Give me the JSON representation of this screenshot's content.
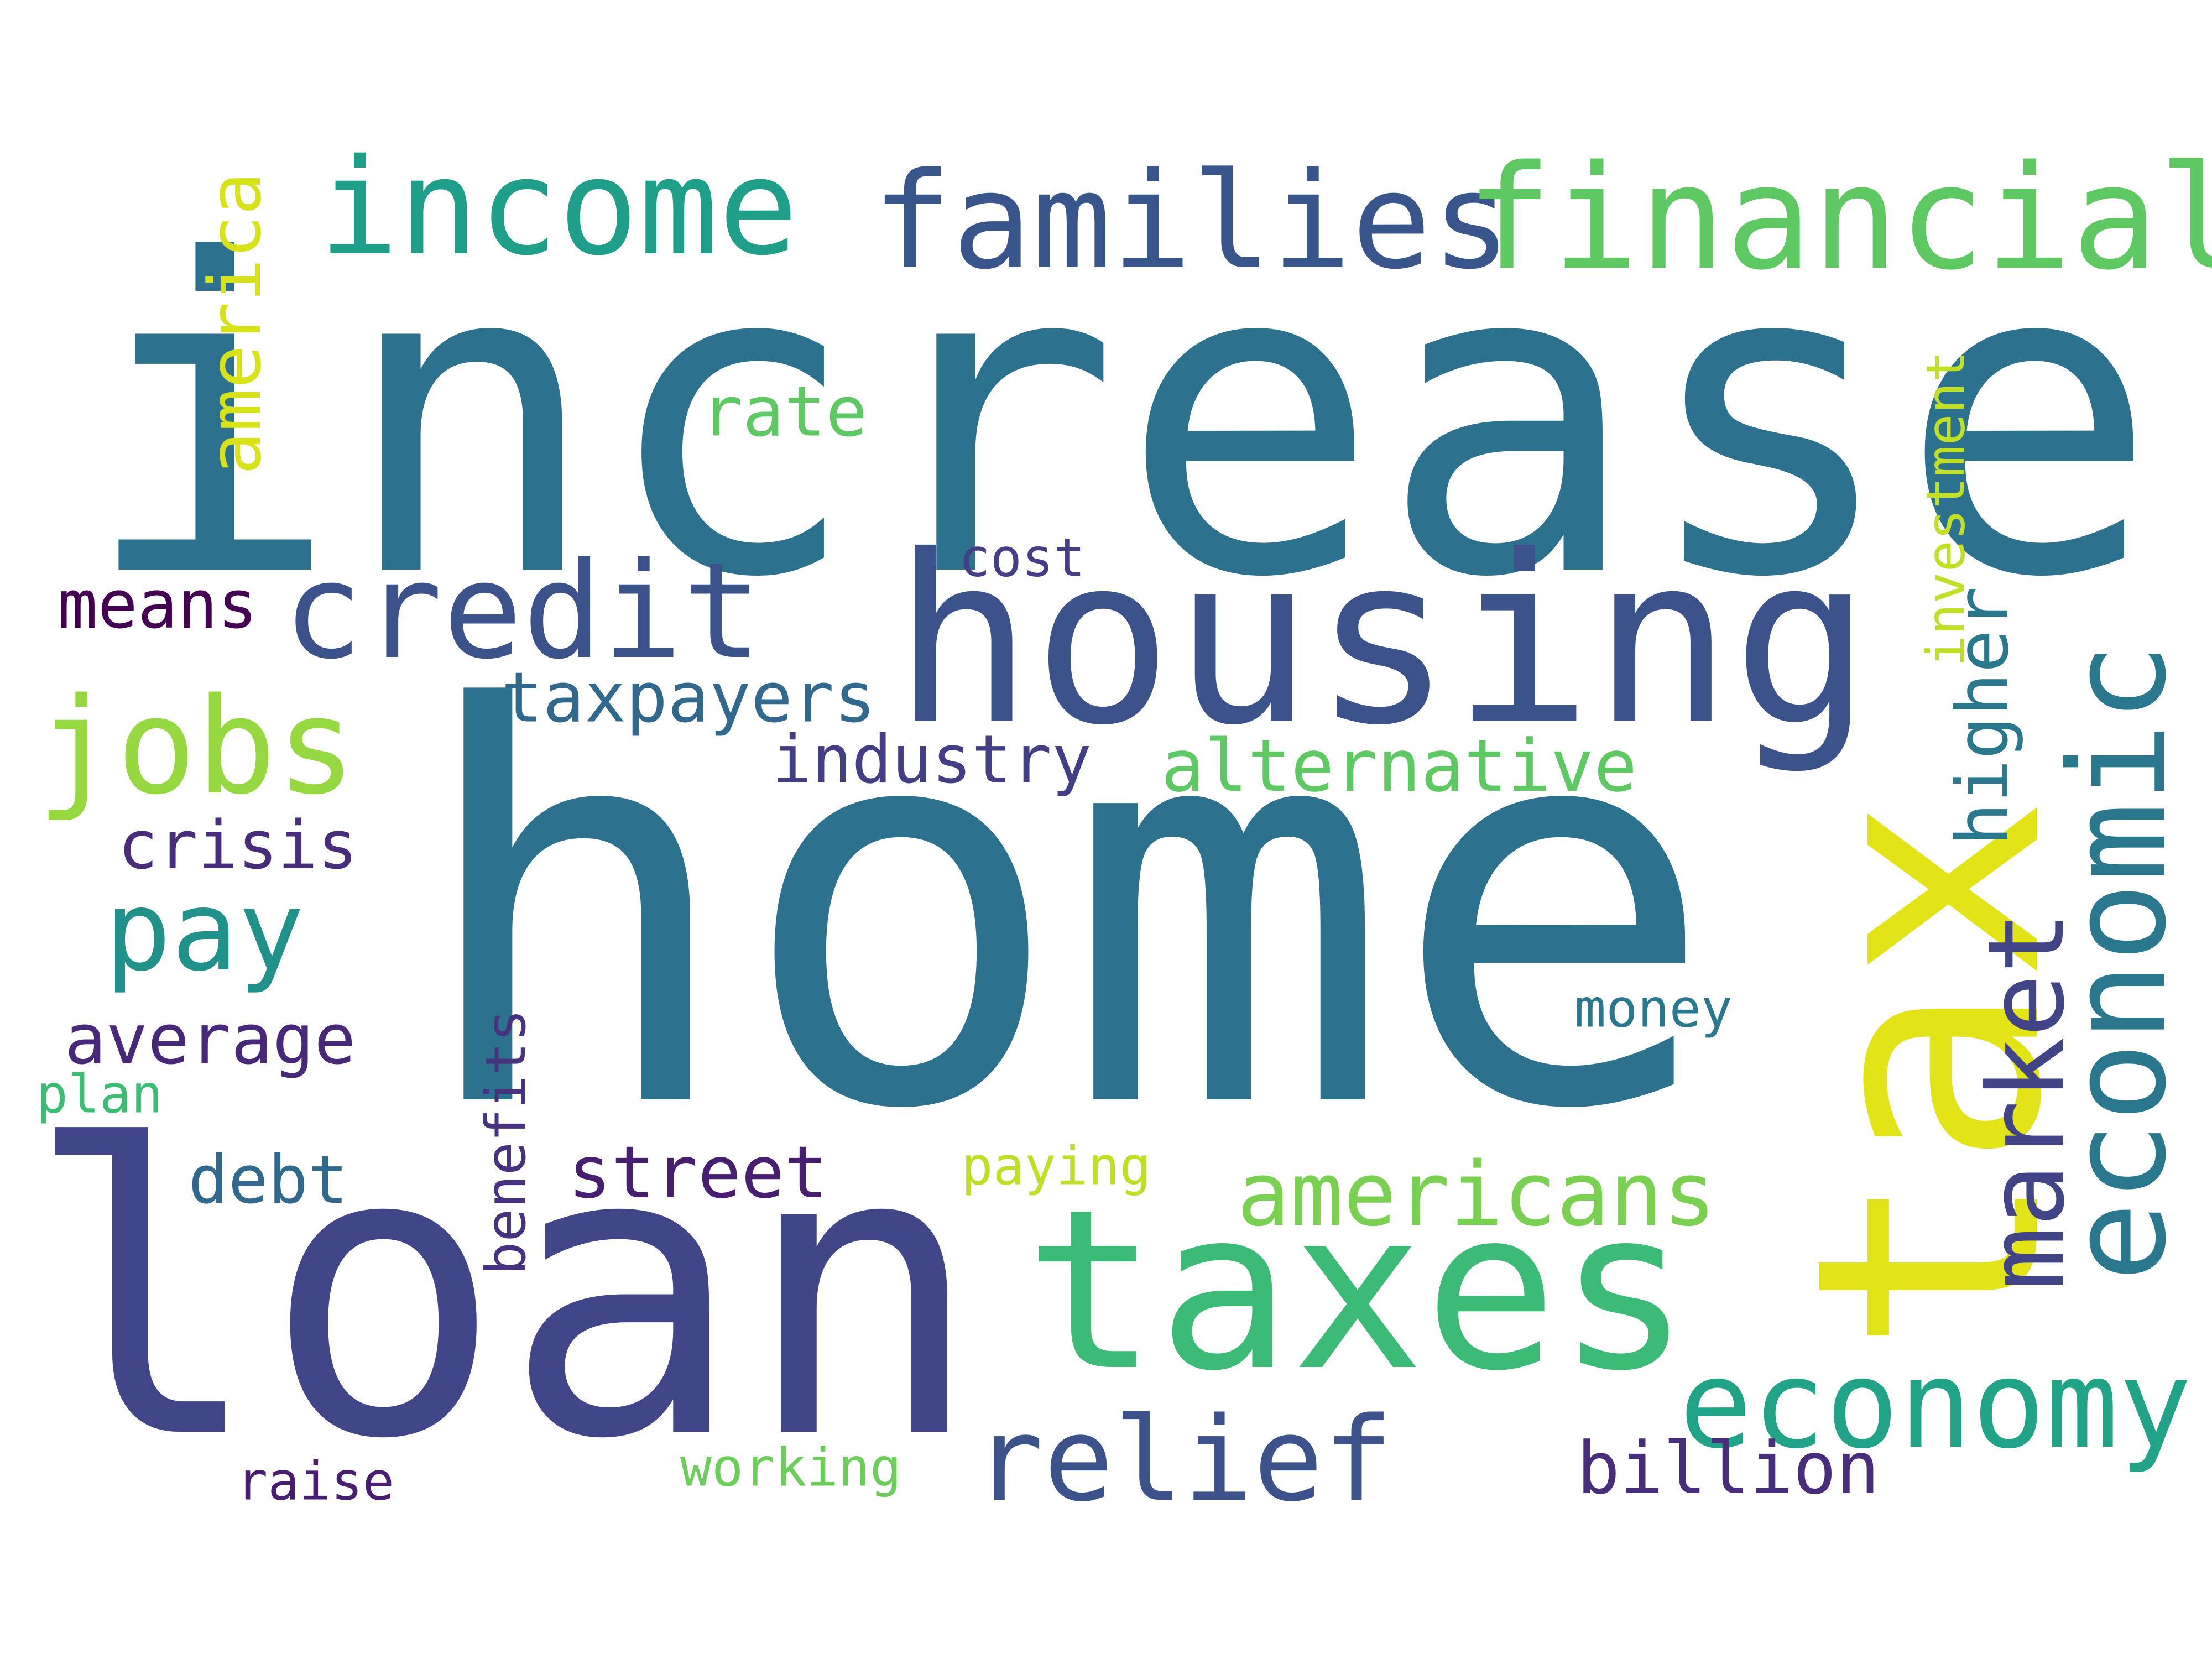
{
  "words": [
    {
      "text": "increase",
      "color": "#2c728e"
    },
    {
      "text": "home",
      "color": "#2c728e"
    },
    {
      "text": "loan",
      "color": "#404688"
    },
    {
      "text": "housing",
      "color": "#3b528b"
    },
    {
      "text": "tax",
      "color": "#e2e418"
    },
    {
      "text": "taxes",
      "color": "#3bbb75"
    },
    {
      "text": "families",
      "color": "#39568c"
    },
    {
      "text": "financial",
      "color": "#5ec962"
    },
    {
      "text": "income",
      "color": "#1f9e89"
    },
    {
      "text": "credit",
      "color": "#3b528b"
    },
    {
      "text": "jobs",
      "color": "#95d840"
    },
    {
      "text": "economic",
      "color": "#2a788e"
    },
    {
      "text": "market",
      "color": "#414487"
    },
    {
      "text": "economy",
      "color": "#20a386"
    },
    {
      "text": "relief",
      "color": "#3b528b"
    },
    {
      "text": "americans",
      "color": "#7ad151"
    },
    {
      "text": "pay",
      "color": "#21918c"
    },
    {
      "text": "america",
      "color": "#d8e219"
    },
    {
      "text": "higher",
      "color": "#2a788e"
    },
    {
      "text": "street",
      "color": "#481f70"
    },
    {
      "text": "billion",
      "color": "#472d7b"
    },
    {
      "text": "alternative",
      "color": "#5ec962"
    },
    {
      "text": "taxpayers",
      "color": "#31688e"
    },
    {
      "text": "average",
      "color": "#482878"
    },
    {
      "text": "rate",
      "color": "#5ec962"
    },
    {
      "text": "crisis",
      "color": "#472d7b"
    },
    {
      "text": "means",
      "color": "#440154"
    },
    {
      "text": "industry",
      "color": "#433e85"
    },
    {
      "text": "debt",
      "color": "#31688e"
    },
    {
      "text": "benefits",
      "color": "#46327e"
    },
    {
      "text": "investment",
      "color": "#c0df25"
    },
    {
      "text": "cost",
      "color": "#433e85"
    },
    {
      "text": "money",
      "color": "#2a788e"
    },
    {
      "text": "paying",
      "color": "#bddf26"
    },
    {
      "text": "working",
      "color": "#6ccd5a"
    },
    {
      "text": "raise",
      "color": "#481f70"
    },
    {
      "text": "plan",
      "color": "#3dbc74"
    }
  ]
}
